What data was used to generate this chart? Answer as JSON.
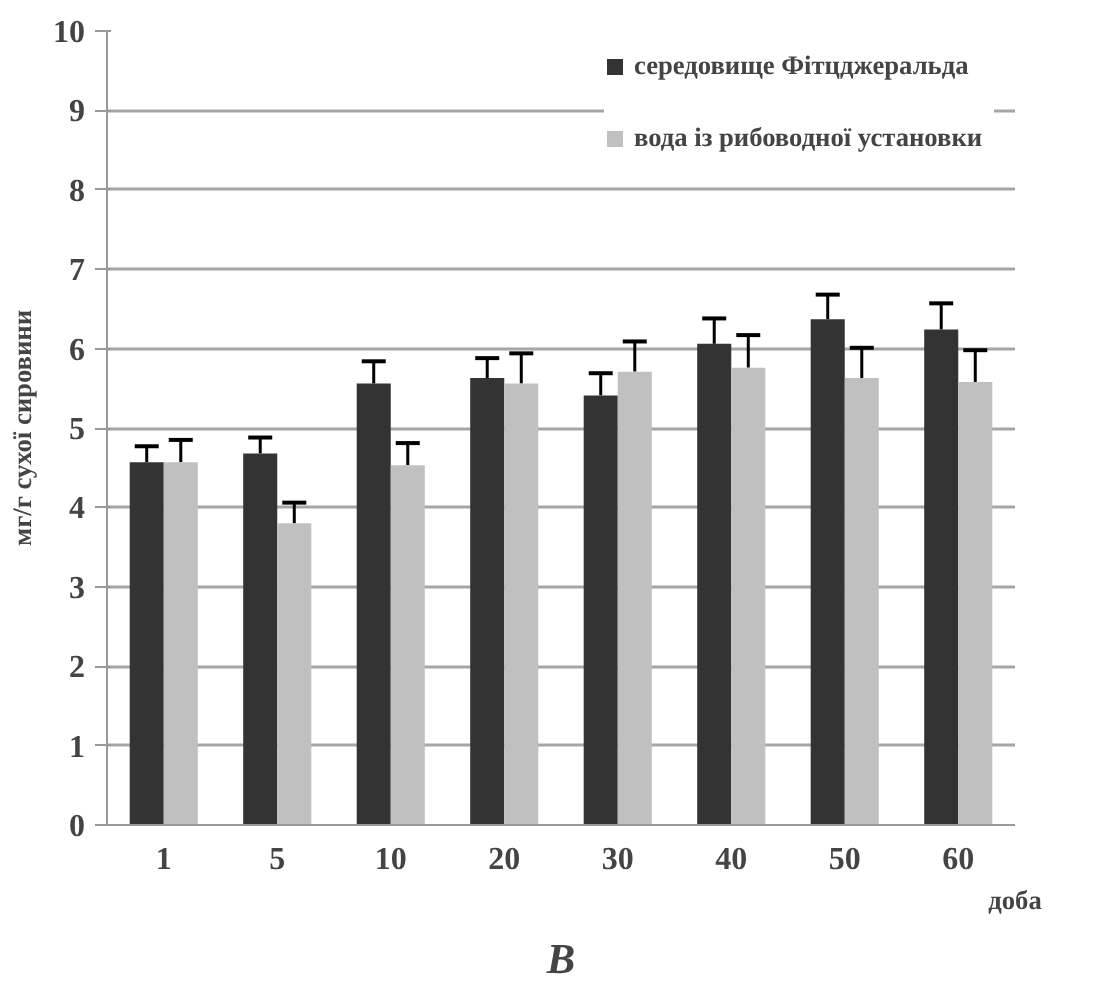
{
  "chart_data": {
    "type": "bar",
    "title": "В",
    "xlabel": "доба",
    "ylabel": "мг/г сухої сировини",
    "categories": [
      "1",
      "5",
      "10",
      "20",
      "30",
      "40",
      "50",
      "60"
    ],
    "series": [
      {
        "name": "середовище Фітцджеральда",
        "color": "#333333",
        "values": [
          4.57,
          4.68,
          5.56,
          5.63,
          5.41,
          6.06,
          6.37,
          6.24
        ],
        "errors": [
          [
            4.57,
            4.77
          ],
          [
            4.68,
            4.88
          ],
          [
            5.56,
            5.84
          ],
          [
            5.63,
            5.88
          ],
          [
            5.41,
            5.69
          ],
          [
            6.06,
            6.38
          ],
          [
            6.37,
            6.68
          ],
          [
            6.24,
            6.57
          ]
        ]
      },
      {
        "name": "вода із рибоводної установки",
        "color": "#c0c0c0",
        "values": [
          4.57,
          3.8,
          4.53,
          5.56,
          5.71,
          5.76,
          5.63,
          5.58
        ],
        "errors": [
          [
            4.57,
            4.85
          ],
          [
            3.8,
            4.06
          ],
          [
            4.53,
            4.81
          ],
          [
            5.56,
            5.94
          ],
          [
            5.71,
            6.09
          ],
          [
            5.76,
            6.17
          ],
          [
            5.63,
            6.01
          ],
          [
            5.58,
            5.98
          ]
        ]
      }
    ],
    "ylim": [
      0,
      10
    ],
    "yticks": [
      0,
      1,
      2,
      3,
      4,
      5,
      6,
      7,
      8,
      9,
      10
    ],
    "grid": "y",
    "legend": "top right"
  }
}
